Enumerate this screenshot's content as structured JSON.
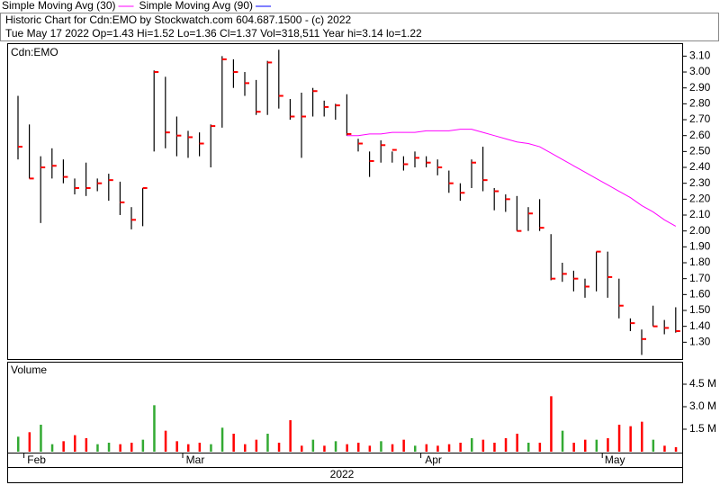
{
  "header": {
    "title": "Historic Chart for Cdn:EMO by Stockwatch.com 604.687.1500 - (c) 2022",
    "quote": "Tue May 17 2022  Op=1.43 Hi=1.52 Lo=1.36 Cl=1.37 Vol=318,511 Year hi=3.14 lo=1.22"
  },
  "chart_data": [
    {
      "type": "ohlc",
      "label": "Cdn:EMO",
      "close_color": "#ff0000",
      "bar_color": "#000000",
      "categories": [
        null,
        "Feb",
        null,
        null,
        null,
        null,
        null,
        null,
        null,
        null,
        null,
        null,
        null,
        null,
        null,
        "Mar",
        null,
        null,
        null,
        null,
        null,
        null,
        null,
        null,
        null,
        null,
        null,
        null,
        null,
        null,
        null,
        null,
        null,
        null,
        null,
        null,
        "Apr",
        null,
        null,
        null,
        null,
        null,
        null,
        null,
        null,
        null,
        null,
        null,
        null,
        null,
        null,
        null,
        "May",
        null,
        null,
        null,
        null,
        null,
        null
      ],
      "high": [
        2.85,
        2.67,
        2.47,
        2.52,
        2.45,
        2.33,
        2.43,
        2.33,
        2.36,
        2.31,
        2.15,
        2.27,
        3.01,
        2.97,
        2.72,
        2.63,
        2.62,
        2.67,
        3.1,
        3.08,
        3.0,
        2.95,
        3.07,
        3.14,
        2.83,
        2.87,
        2.9,
        2.82,
        2.8,
        2.86,
        2.58,
        2.5,
        2.57,
        2.5,
        2.47,
        2.5,
        2.47,
        2.45,
        2.38,
        2.3,
        2.45,
        2.53,
        2.27,
        2.23,
        2.22,
        2.15,
        2.2,
        1.98,
        1.8,
        1.75,
        1.7,
        1.87,
        1.87,
        1.7,
        1.45,
        1.38,
        1.53,
        1.44,
        1.52
      ],
      "low": [
        2.45,
        2.33,
        2.05,
        2.33,
        2.3,
        2.23,
        2.22,
        2.25,
        2.19,
        2.1,
        2.01,
        2.03,
        2.5,
        2.52,
        2.47,
        2.46,
        2.47,
        2.4,
        2.65,
        2.9,
        2.85,
        2.73,
        2.73,
        2.77,
        2.7,
        2.46,
        2.72,
        2.72,
        2.7,
        2.6,
        2.5,
        2.34,
        2.43,
        2.43,
        2.38,
        2.4,
        2.4,
        2.35,
        2.24,
        2.19,
        2.27,
        2.25,
        2.13,
        2.12,
        2.0,
        2.0,
        2.0,
        1.69,
        1.68,
        1.62,
        1.58,
        1.62,
        1.58,
        1.45,
        1.37,
        1.22,
        1.4,
        1.35,
        1.36
      ],
      "close": [
        2.53,
        2.33,
        2.4,
        2.41,
        2.34,
        2.27,
        2.27,
        2.3,
        2.32,
        2.18,
        2.07,
        2.27,
        3.0,
        2.62,
        2.6,
        2.59,
        2.55,
        2.66,
        3.08,
        3.0,
        2.93,
        2.75,
        3.06,
        2.85,
        2.72,
        2.72,
        2.88,
        2.78,
        2.79,
        2.61,
        2.55,
        2.44,
        2.54,
        2.51,
        2.42,
        2.46,
        2.43,
        2.4,
        2.3,
        2.24,
        2.43,
        2.32,
        2.25,
        2.2,
        2.0,
        2.11,
        2.02,
        1.7,
        1.73,
        1.7,
        1.65,
        1.87,
        1.71,
        1.53,
        1.42,
        1.32,
        1.4,
        1.39,
        1.37
      ],
      "series": [
        {
          "name": "Simple Moving Avg (30)",
          "color": "#ff00ff",
          "values": [
            null,
            null,
            null,
            null,
            null,
            null,
            null,
            null,
            null,
            null,
            null,
            null,
            null,
            null,
            null,
            null,
            null,
            null,
            null,
            null,
            null,
            null,
            null,
            null,
            null,
            null,
            null,
            null,
            null,
            2.6,
            2.6,
            2.61,
            2.61,
            2.62,
            2.62,
            2.62,
            2.63,
            2.63,
            2.63,
            2.64,
            2.64,
            2.62,
            2.6,
            2.58,
            2.56,
            2.55,
            2.53,
            2.49,
            2.45,
            2.41,
            2.37,
            2.33,
            2.29,
            2.25,
            2.21,
            2.16,
            2.12,
            2.07,
            2.03
          ]
        },
        {
          "name": "Simple Moving Avg (90)",
          "color": "#0000ff"
        }
      ],
      "ylim": [
        1.2,
        3.17
      ],
      "yticks": [
        {
          "value": 1.3,
          "label": "1.30"
        },
        {
          "value": 1.4,
          "label": "1.40"
        },
        {
          "value": 1.5,
          "label": "1.50"
        },
        {
          "value": 1.6,
          "label": "1.60"
        },
        {
          "value": 1.7,
          "label": "1.70"
        },
        {
          "value": 1.8,
          "label": "1.80"
        },
        {
          "value": 1.9,
          "label": "1.90"
        },
        {
          "value": 2.0,
          "label": "2.00"
        },
        {
          "value": 2.1,
          "label": "2.10"
        },
        {
          "value": 2.2,
          "label": "2.20"
        },
        {
          "value": 2.3,
          "label": "2.30"
        },
        {
          "value": 2.4,
          "label": "2.40"
        },
        {
          "value": 2.5,
          "label": "2.50"
        },
        {
          "value": 2.6,
          "label": "2.60"
        },
        {
          "value": 2.7,
          "label": "2.70"
        },
        {
          "value": 2.8,
          "label": "2.80"
        },
        {
          "value": 2.9,
          "label": "2.90"
        },
        {
          "value": 3.0,
          "label": "3.00"
        },
        {
          "value": 3.1,
          "label": "3.10"
        }
      ]
    },
    {
      "type": "volume",
      "label": "Volume",
      "xlabel": "2022",
      "up_color": "#33aa33",
      "down_color": "#ff0000",
      "values": [
        1.0,
        1.3,
        1.8,
        0.5,
        0.7,
        1.1,
        0.9,
        0.5,
        0.6,
        0.5,
        0.6,
        0.8,
        3.1,
        1.4,
        0.7,
        0.5,
        0.6,
        0.5,
        1.6,
        1.2,
        0.5,
        0.8,
        1.2,
        0.6,
        2.1,
        0.4,
        0.8,
        0.4,
        0.7,
        0.5,
        0.6,
        0.4,
        0.7,
        0.5,
        0.8,
        0.4,
        0.5,
        0.4,
        0.5,
        0.6,
        0.9,
        0.8,
        0.6,
        0.9,
        1.2,
        0.6,
        0.6,
        3.7,
        1.4,
        0.6,
        0.8,
        0.8,
        0.9,
        1.8,
        1.7,
        2.0,
        0.8,
        0.4,
        0.3
      ],
      "ylim": [
        0,
        5.88
      ],
      "yticks": [
        {
          "value": 1.5,
          "label": "1.5 M"
        },
        {
          "value": 3.0,
          "label": "3.0 M"
        },
        {
          "value": 4.5,
          "label": "4.5 M"
        }
      ]
    }
  ]
}
